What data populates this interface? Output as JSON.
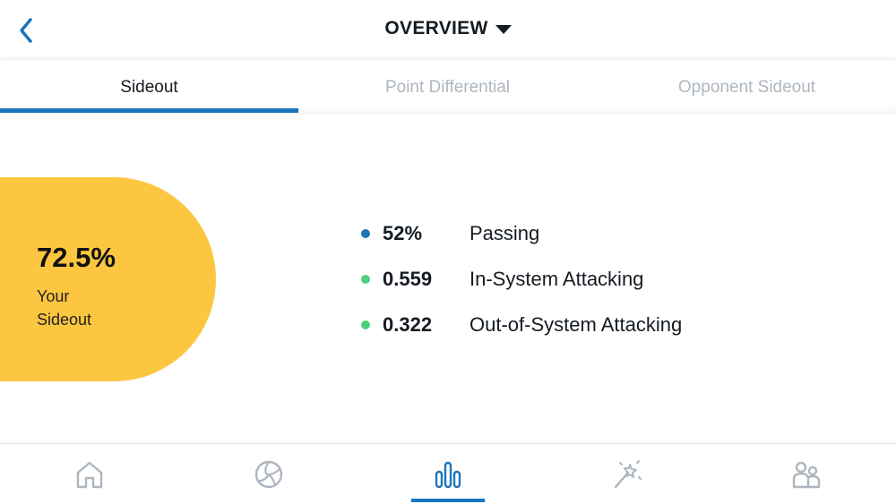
{
  "header": {
    "title": "OVERVIEW"
  },
  "tabs": [
    {
      "label": "Sideout",
      "active": true
    },
    {
      "label": "Point Differential",
      "active": false
    },
    {
      "label": "Opponent Sideout",
      "active": false
    }
  ],
  "summary": {
    "value": "72.5%",
    "label_line1": "Your",
    "label_line2": "Sideout",
    "color": "#fdc640"
  },
  "metrics": [
    {
      "value": "52%",
      "label": "Passing",
      "dot_color": "#1b75bb"
    },
    {
      "value": "0.559",
      "label": "In-System Attacking",
      "dot_color": "#4cd07d"
    },
    {
      "value": "0.322",
      "label": "Out-of-System Attacking",
      "dot_color": "#4cd07d"
    }
  ],
  "bottom_nav": [
    {
      "icon": "home-icon",
      "active": false
    },
    {
      "icon": "volleyball-icon",
      "active": false
    },
    {
      "icon": "stats-bar-icon",
      "active": true
    },
    {
      "icon": "magic-wand-icon",
      "active": false
    },
    {
      "icon": "team-icon",
      "active": false
    }
  ],
  "colors": {
    "accent": "#1b75bb",
    "inactive_icon": "#aeb6bf"
  }
}
